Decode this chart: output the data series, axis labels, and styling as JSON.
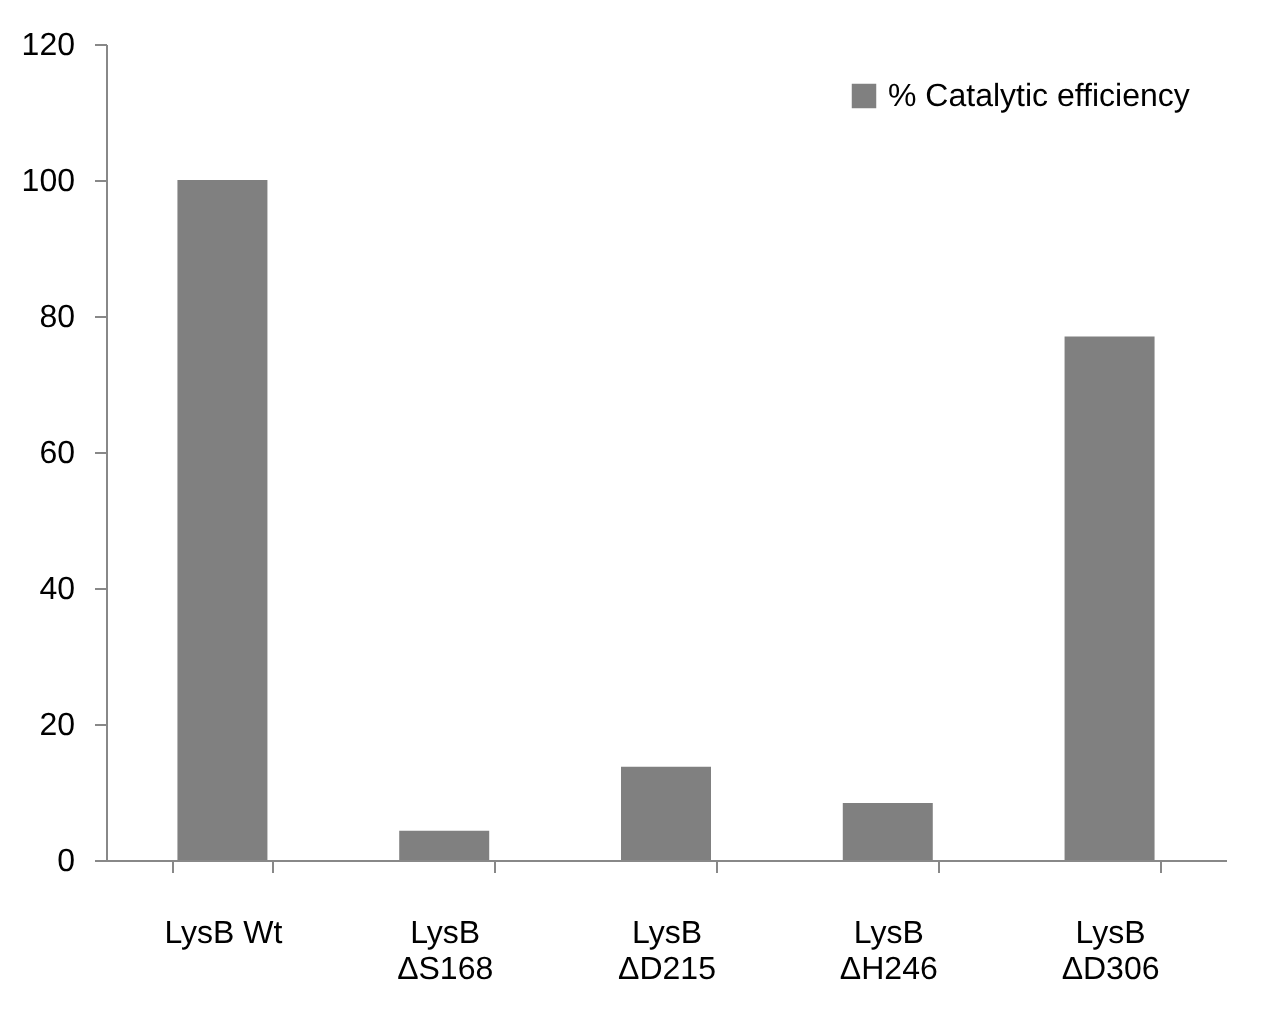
{
  "chart_data": {
    "type": "bar",
    "categories": [
      "LysB Wt",
      "LysB\nΔS168",
      "LysB\nΔD215",
      "LysB\nΔH246",
      "LysB\nΔD306"
    ],
    "series": [
      {
        "name": "% Catalytic efficiency",
        "color": "#808080",
        "values": [
          100,
          4.3,
          13.7,
          8.4,
          77
        ]
      }
    ],
    "ylim": [
      0,
      120
    ],
    "yticks": [
      0,
      20,
      40,
      60,
      80,
      100,
      120
    ],
    "grid": false,
    "legend": "top right"
  }
}
